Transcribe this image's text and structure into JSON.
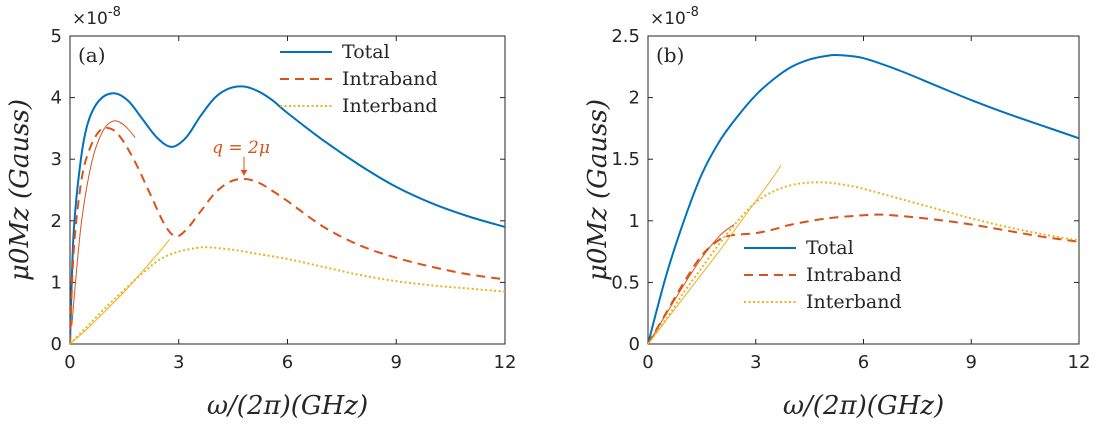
{
  "chart_data": [
    {
      "type": "line",
      "panel_label": "(a)",
      "xlabel": "ω/(2π)(GHz)",
      "ylabel": "μ0Mz (Gauss)",
      "y_exponent": "×10",
      "y_exponent_power": "-8",
      "xlim": [
        0,
        12
      ],
      "ylim": [
        0,
        5
      ],
      "xticks": [
        0,
        3,
        6,
        9,
        12
      ],
      "yticks": [
        0,
        1,
        2,
        3,
        4,
        5
      ],
      "xtick_labels": [
        "0",
        "3",
        "6",
        "9",
        "12"
      ],
      "ytick_labels": [
        "0",
        "1",
        "2",
        "3",
        "4",
        "5"
      ],
      "legend_position": "top-right",
      "annotation": {
        "text": "q = 2μ",
        "x": 4.8,
        "y": 2.68
      },
      "series": [
        {
          "name": "Total",
          "color": "#0072BD",
          "style": "solid",
          "x": [
            0,
            0.1,
            0.3,
            0.5,
            0.8,
            1.2,
            1.6,
            2.0,
            2.4,
            2.8,
            3.2,
            3.6,
            4.0,
            4.4,
            4.8,
            5.2,
            5.6,
            6.0,
            7.0,
            8.0,
            9.0,
            10.0,
            11.0,
            12.0
          ],
          "y": [
            0,
            1.8,
            3.0,
            3.6,
            3.95,
            4.07,
            3.95,
            3.65,
            3.35,
            3.2,
            3.35,
            3.7,
            4.0,
            4.15,
            4.18,
            4.1,
            3.95,
            3.75,
            3.3,
            2.9,
            2.55,
            2.28,
            2.07,
            1.9
          ]
        },
        {
          "name": "Intraband",
          "color": "#D95319",
          "style": "dashed",
          "x": [
            0,
            0.1,
            0.3,
            0.5,
            0.8,
            1.1,
            1.4,
            1.8,
            2.2,
            2.6,
            2.9,
            3.2,
            3.6,
            4.0,
            4.4,
            4.8,
            5.2,
            5.6,
            6.0,
            7.0,
            8.0,
            9.0,
            10.0,
            11.0,
            12.0
          ],
          "y": [
            0,
            1.5,
            2.6,
            3.1,
            3.45,
            3.5,
            3.35,
            2.95,
            2.45,
            1.95,
            1.75,
            1.85,
            2.15,
            2.45,
            2.63,
            2.68,
            2.62,
            2.48,
            2.32,
            1.9,
            1.6,
            1.4,
            1.25,
            1.13,
            1.05
          ]
        },
        {
          "name": "Interband",
          "color": "#EDB120",
          "style": "dotted",
          "x": [
            0,
            0.5,
            1.0,
            1.5,
            2.0,
            2.5,
            3.0,
            3.5,
            3.8,
            4.5,
            5.0,
            6.0,
            7.0,
            8.0,
            9.0,
            10.0,
            11.0,
            12.0
          ],
          "y": [
            0,
            0.3,
            0.6,
            0.88,
            1.15,
            1.38,
            1.5,
            1.56,
            1.57,
            1.53,
            1.48,
            1.38,
            1.25,
            1.12,
            1.02,
            0.95,
            0.9,
            0.85
          ]
        },
        {
          "color": "#D95319",
          "style": "thin",
          "x": [
            0.05,
            0.3,
            0.6,
            0.9,
            1.2,
            1.5,
            1.8
          ],
          "y": [
            0.3,
            1.9,
            2.95,
            3.45,
            3.62,
            3.55,
            3.35
          ]
        },
        {
          "color": "#EDB120",
          "style": "thin",
          "x": [
            0,
            0.5,
            1.0,
            1.5,
            2.0,
            2.5,
            2.75
          ],
          "y": [
            0,
            0.26,
            0.55,
            0.85,
            1.18,
            1.52,
            1.7
          ]
        }
      ]
    },
    {
      "type": "line",
      "panel_label": "(b)",
      "xlabel": "ω/(2π)(GHz)",
      "ylabel": "μ0Mz (Gauss)",
      "y_exponent": "×10",
      "y_exponent_power": "-8",
      "xlim": [
        0,
        12
      ],
      "ylim": [
        0,
        2.5
      ],
      "xticks": [
        0,
        3,
        6,
        9,
        12
      ],
      "yticks": [
        0,
        0.5,
        1,
        1.5,
        2,
        2.5
      ],
      "xtick_labels": [
        "0",
        "3",
        "6",
        "9",
        "12"
      ],
      "ytick_labels": [
        "0",
        "0.5",
        "1",
        "1.5",
        "2",
        "2.5"
      ],
      "legend_position": "bottom-center",
      "series": [
        {
          "name": "Total",
          "color": "#0072BD",
          "style": "solid",
          "x": [
            0,
            0.5,
            1.0,
            1.5,
            2.0,
            2.5,
            3.0,
            3.5,
            4.0,
            4.5,
            5.0,
            5.3,
            6.0,
            7.0,
            8.0,
            9.0,
            10.0,
            11.0,
            12.0
          ],
          "y": [
            0,
            0.55,
            1.0,
            1.38,
            1.65,
            1.85,
            2.02,
            2.15,
            2.25,
            2.31,
            2.34,
            2.345,
            2.32,
            2.22,
            2.1,
            1.98,
            1.87,
            1.77,
            1.67
          ]
        },
        {
          "name": "Intraband",
          "color": "#D95319",
          "style": "dashed",
          "x": [
            0,
            0.5,
            1.0,
            1.5,
            2.0,
            2.3,
            2.6,
            3.0,
            3.5,
            4.0,
            5.0,
            6.0,
            6.5,
            7.0,
            8.0,
            9.0,
            10.0,
            11.0,
            12.0
          ],
          "y": [
            0,
            0.25,
            0.5,
            0.72,
            0.85,
            0.88,
            0.89,
            0.9,
            0.93,
            0.97,
            1.02,
            1.045,
            1.05,
            1.04,
            1.01,
            0.97,
            0.92,
            0.87,
            0.83
          ]
        },
        {
          "name": "Interband",
          "color": "#EDB120",
          "style": "dotted",
          "x": [
            0,
            0.5,
            1.0,
            1.5,
            2.0,
            2.5,
            3.0,
            3.5,
            4.0,
            4.5,
            5.0,
            5.5,
            6.0,
            7.0,
            8.0,
            9.0,
            10.0,
            11.0,
            12.0
          ],
          "y": [
            0,
            0.2,
            0.42,
            0.62,
            0.82,
            1.0,
            1.15,
            1.24,
            1.29,
            1.31,
            1.31,
            1.29,
            1.26,
            1.18,
            1.1,
            1.02,
            0.95,
            0.89,
            0.84
          ]
        },
        {
          "color": "#D95319",
          "style": "thin",
          "x": [
            0,
            0.5,
            1.0,
            1.5,
            2.0,
            2.4
          ],
          "y": [
            0,
            0.24,
            0.48,
            0.7,
            0.88,
            0.97
          ]
        },
        {
          "color": "#EDB120",
          "style": "thin",
          "x": [
            0,
            0.5,
            1.0,
            1.5,
            2.0,
            2.5,
            3.0,
            3.5,
            3.7
          ],
          "y": [
            0,
            0.19,
            0.38,
            0.57,
            0.76,
            0.96,
            1.16,
            1.36,
            1.45
          ]
        }
      ]
    }
  ]
}
